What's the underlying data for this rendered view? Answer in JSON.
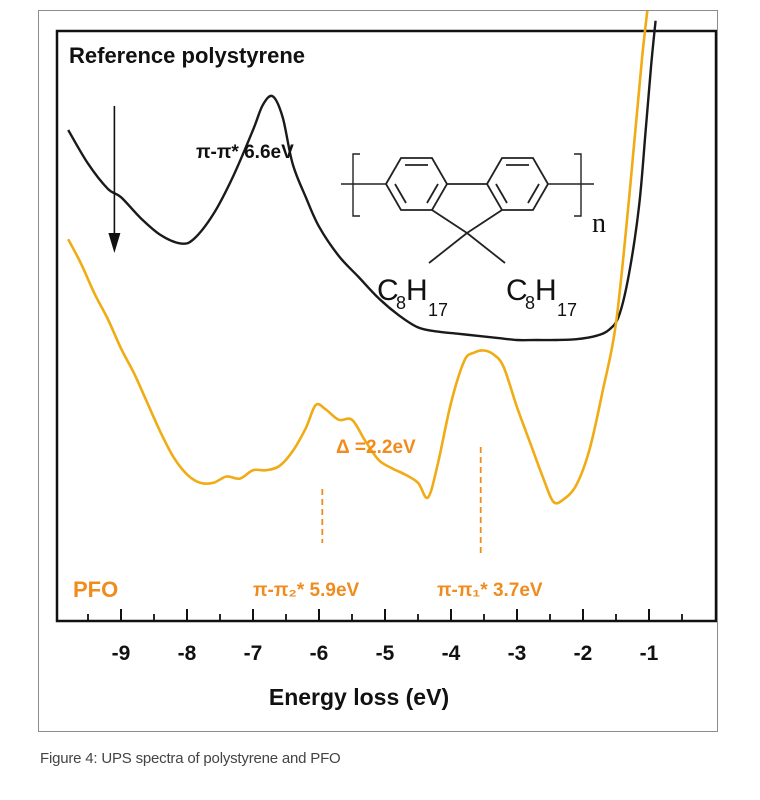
{
  "caption": "Figure 4: UPS spectra of polystyrene and PFO",
  "chart_data": {
    "type": "line",
    "title": "Reference polystyrene",
    "xlabel": "Energy loss (eV)",
    "ylabel": "",
    "xlim": [
      -9.8,
      -0.2
    ],
    "x_ticks": [
      -9,
      -8,
      -7,
      -6,
      -5,
      -4,
      -3,
      -2,
      -1
    ],
    "x_tick_labels": [
      "-9",
      "-8",
      "-7",
      "-6",
      "-5",
      "-4",
      "-3",
      "-2",
      "-1"
    ],
    "y_axis_visible": false,
    "grid": false,
    "series": [
      {
        "name": "Reference polystyrene",
        "color": "#1a1a1a",
        "x": [
          -9.8,
          -9.5,
          -9.2,
          -9.0,
          -8.7,
          -8.4,
          -8.1,
          -7.9,
          -7.6,
          -7.3,
          -7.0,
          -6.85,
          -6.7,
          -6.55,
          -6.4,
          -6.2,
          -6.0,
          -5.7,
          -5.4,
          -5.1,
          -4.8,
          -4.5,
          -4.2,
          -3.9,
          -3.6,
          -3.3,
          -3.0,
          -2.7,
          -2.4,
          -2.1,
          -1.8,
          -1.6,
          -1.45,
          -1.3,
          -1.15,
          -1.05,
          -0.97,
          -0.9
        ],
        "y": [
          0.6,
          0.52,
          0.46,
          0.44,
          0.39,
          0.35,
          0.33,
          0.34,
          0.4,
          0.49,
          0.6,
          0.66,
          0.68,
          0.63,
          0.52,
          0.44,
          0.37,
          0.3,
          0.25,
          0.2,
          0.16,
          0.13,
          0.12,
          0.115,
          0.11,
          0.105,
          0.1,
          0.1,
          0.1,
          0.102,
          0.11,
          0.125,
          0.16,
          0.26,
          0.42,
          0.6,
          0.75,
          0.86
        ]
      },
      {
        "name": "PFO",
        "color": "#f0ab15",
        "x": [
          -9.8,
          -9.6,
          -9.4,
          -9.2,
          -9.0,
          -8.8,
          -8.6,
          -8.4,
          -8.2,
          -8.0,
          -7.8,
          -7.6,
          -7.4,
          -7.2,
          -7.0,
          -6.8,
          -6.6,
          -6.4,
          -6.2,
          -6.05,
          -5.9,
          -5.7,
          -5.5,
          -5.3,
          -5.1,
          -4.9,
          -4.7,
          -4.5,
          -4.35,
          -4.2,
          -4.0,
          -3.8,
          -3.65,
          -3.5,
          -3.35,
          -3.2,
          -3.0,
          -2.8,
          -2.6,
          -2.45,
          -2.3,
          -2.1,
          -1.9,
          -1.7,
          -1.5,
          -1.3,
          -1.1,
          -0.95
        ],
        "y": [
          0.34,
          0.28,
          0.21,
          0.15,
          0.08,
          0.02,
          -0.05,
          -0.12,
          -0.18,
          -0.22,
          -0.24,
          -0.24,
          -0.225,
          -0.23,
          -0.21,
          -0.21,
          -0.2,
          -0.165,
          -0.11,
          -0.055,
          -0.065,
          -0.09,
          -0.09,
          -0.14,
          -0.185,
          -0.205,
          -0.22,
          -0.24,
          -0.275,
          -0.195,
          -0.05,
          0.05,
          0.07,
          0.075,
          0.065,
          0.035,
          -0.06,
          -0.145,
          -0.23,
          -0.285,
          -0.28,
          -0.245,
          -0.16,
          -0.02,
          0.14,
          0.44,
          0.78,
          0.98
        ]
      }
    ],
    "legend": "none",
    "annotations": {
      "pi_pi_star_ps": "π-π* 6.6eV",
      "pfo_label": "PFO",
      "pi_pi2_label": "π-π₂* 5.9eV",
      "pi_pi1_label": "π-π₁* 3.7eV",
      "delta_label": "Δ =2.2eV",
      "arrow_x": -9.1,
      "peak_pi2_x": -5.95,
      "peak_pi1_x": -3.55
    },
    "molecule": {
      "substituent_left": "C8H17",
      "substituent_right": "C8H17",
      "repeat_label": "n"
    }
  }
}
